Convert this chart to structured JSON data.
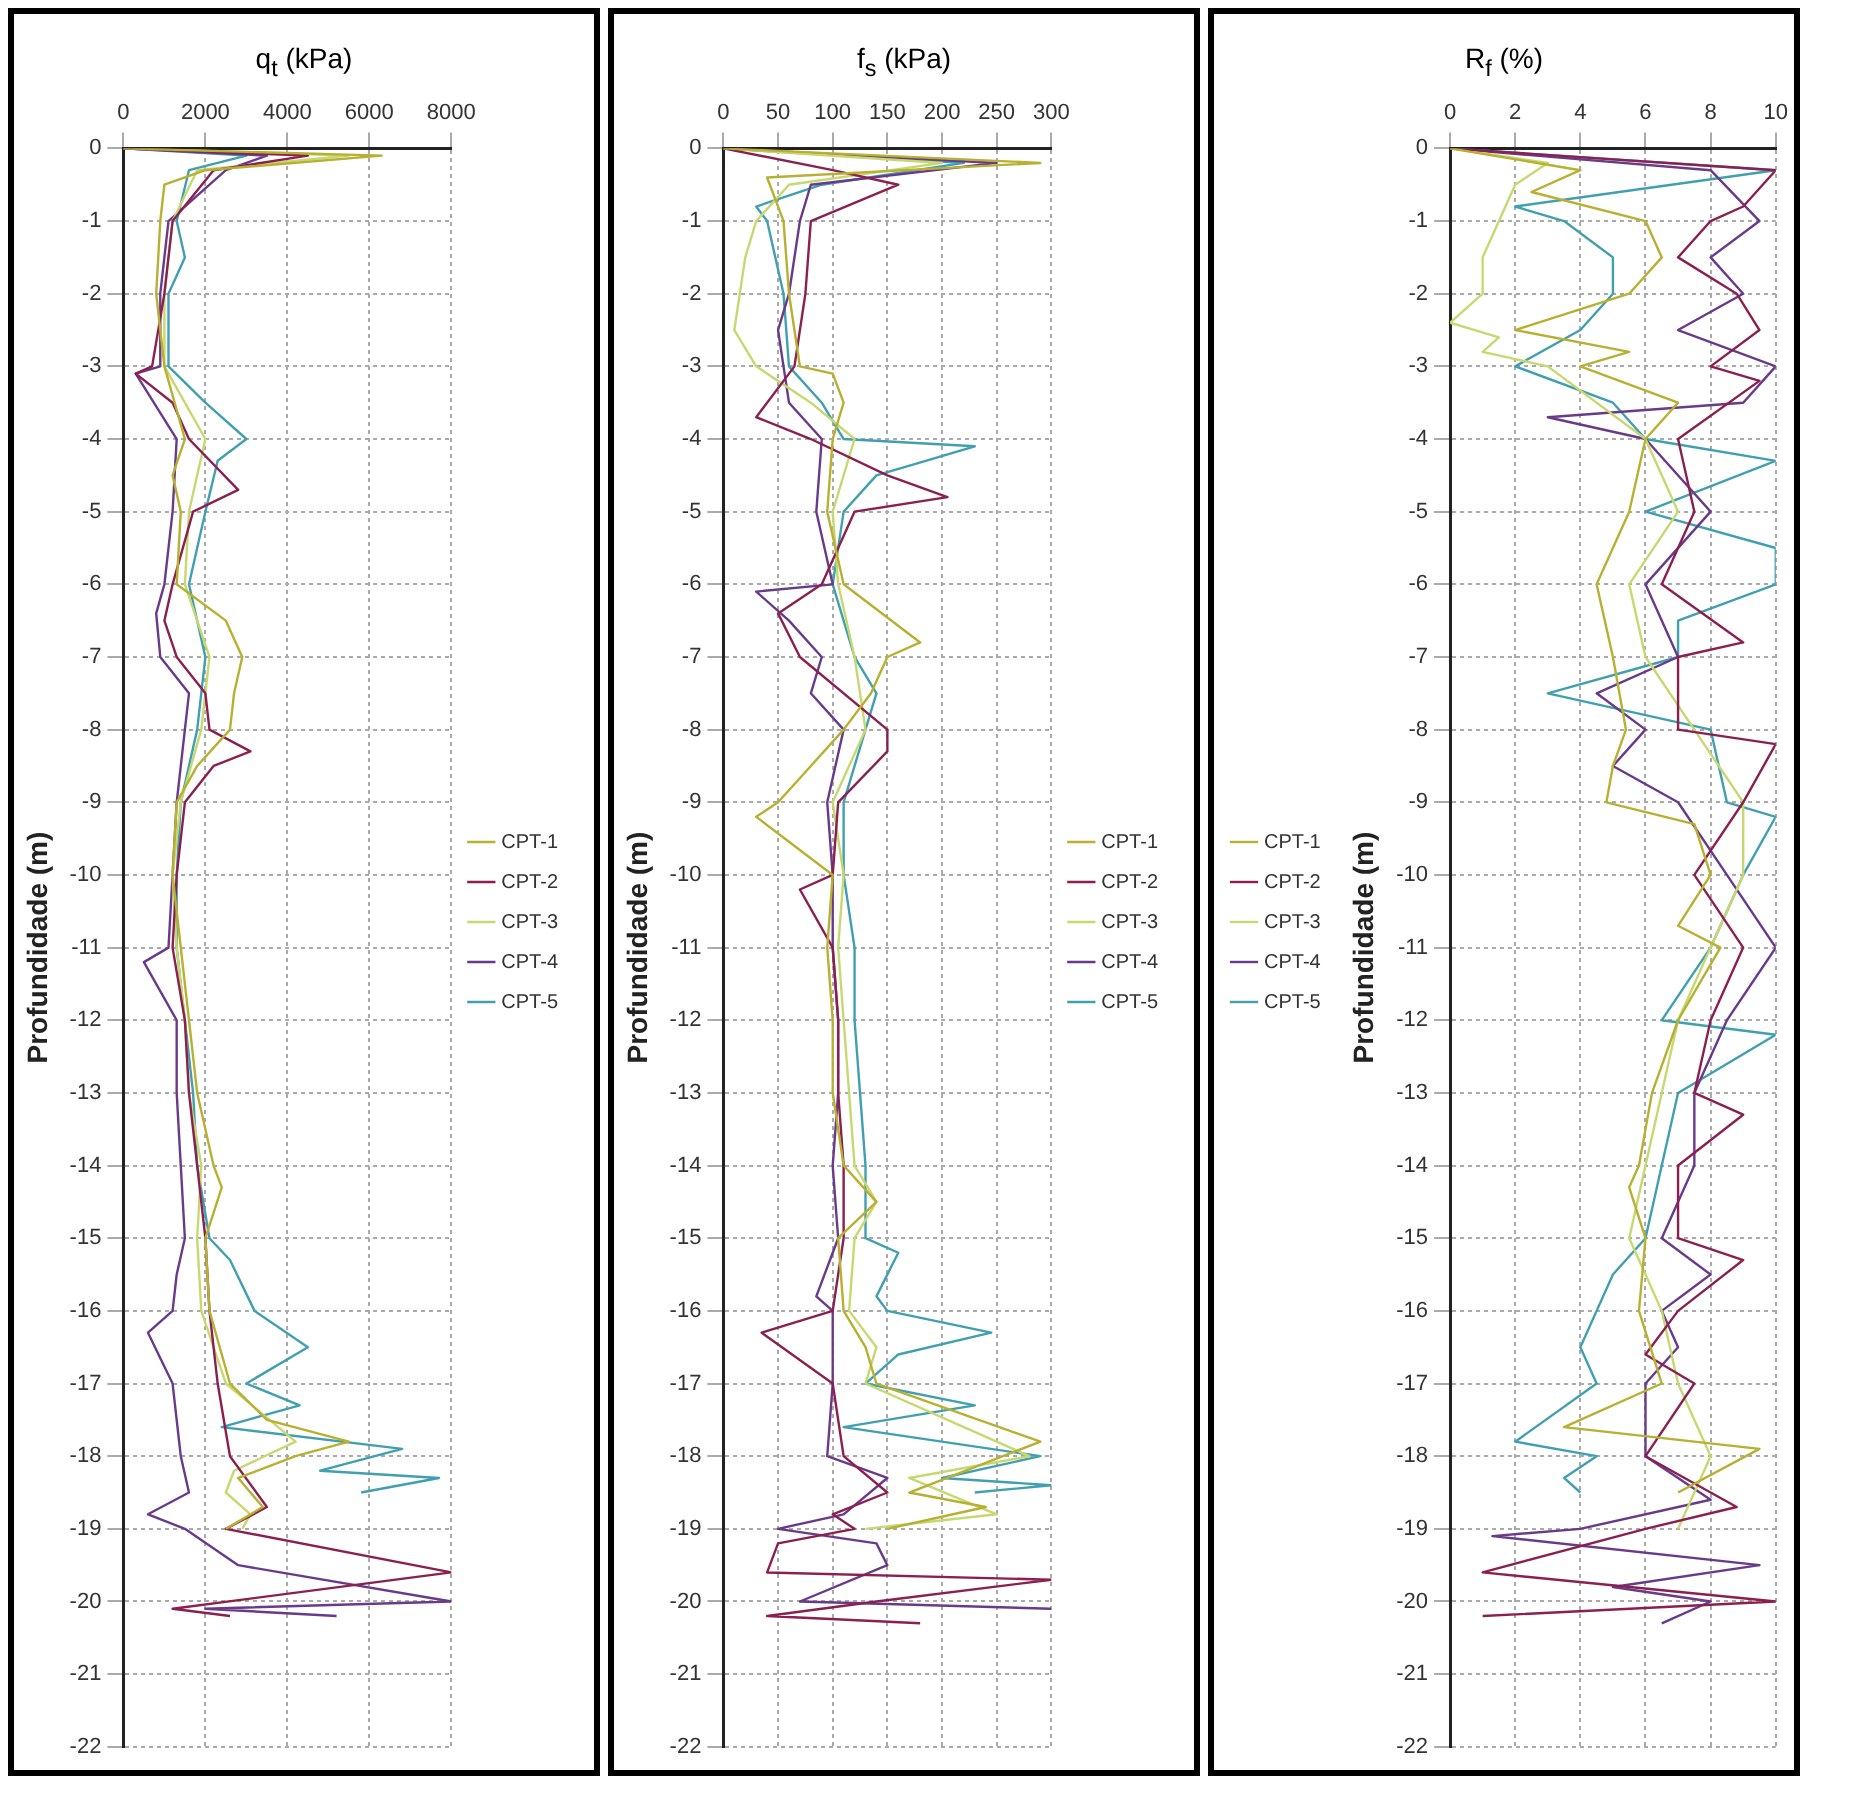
{
  "chart_data": [
    {
      "type": "line",
      "title": "q$_{t}$ (kPa)",
      "ylabel": "Profundidade (m)",
      "xlim": [
        0,
        8000
      ],
      "xticks": [
        0,
        2000,
        4000,
        6000,
        8000
      ],
      "ylim": [
        -22,
        0
      ],
      "yticks": [
        -22,
        -21,
        -20,
        -19,
        -18,
        -17,
        -16,
        -15,
        -14,
        -13,
        -12,
        -11,
        -10,
        -9,
        -8,
        -7,
        -6,
        -5,
        -4,
        -3,
        -2,
        -1,
        0
      ],
      "grid": true,
      "legend": "right",
      "series": [
        {
          "name": "CPT-1",
          "color": "#b8b030",
          "x": [
            0,
            6300,
            2000,
            1000,
            900,
            800,
            1000,
            1500,
            1200,
            1400,
            1300,
            2500,
            2900,
            2700,
            2600,
            1800,
            1300,
            1200,
            1400,
            1600,
            1800,
            2200,
            2400,
            2000,
            2100,
            2600,
            3500,
            5500,
            4200,
            2800,
            3400,
            2500
          ],
          "values": [
            0,
            -0.1,
            -0.3,
            -0.5,
            -1,
            -2,
            -3,
            -4,
            -4.5,
            -5,
            -6,
            -6.5,
            -7,
            -7.5,
            -8,
            -8.5,
            -9,
            -10,
            -11,
            -12,
            -13,
            -14,
            -14.3,
            -15,
            -16,
            -17,
            -17.5,
            -17.8,
            -18,
            -18.3,
            -18.7,
            -19
          ]
        },
        {
          "name": "CPT-2",
          "color": "#8b2050",
          "x": [
            0,
            4500,
            2200,
            1200,
            1000,
            700,
            300,
            1200,
            1600,
            2800,
            1700,
            1200,
            1000,
            1300,
            2000,
            2100,
            3100,
            2200,
            1500,
            1300,
            1200,
            1500,
            1600,
            1800,
            2000,
            2100,
            2300,
            2600,
            3500,
            2500,
            8000,
            1200,
            2600
          ],
          "values": [
            0,
            -0.1,
            -0.3,
            -1,
            -2,
            -3,
            -3.1,
            -3.5,
            -4,
            -4.7,
            -5,
            -6,
            -6.5,
            -7,
            -7.5,
            -8,
            -8.3,
            -8.5,
            -9,
            -10,
            -11,
            -12,
            -13,
            -14,
            -15,
            -16,
            -17,
            -18,
            -18.7,
            -19,
            -19.6,
            -20.1,
            -20.2
          ]
        },
        {
          "name": "CPT-3",
          "color": "#c8d870",
          "x": [
            0,
            5500,
            1800,
            1200,
            1000,
            1000,
            1500,
            2000,
            1600,
            1500,
            2100,
            1900,
            1400,
            1200,
            1300,
            1500,
            1600,
            1900,
            1800,
            1900,
            2200,
            2500,
            4200,
            2700,
            2500,
            3100,
            2900
          ],
          "values": [
            0,
            -0.1,
            -0.3,
            -1,
            -2,
            -3,
            -3.5,
            -4,
            -5,
            -6,
            -7,
            -8,
            -9,
            -10,
            -11,
            -12,
            -13,
            -14,
            -15,
            -16,
            -16.5,
            -17,
            -17.8,
            -18.2,
            -18.5,
            -18.8,
            -19
          ]
        },
        {
          "name": "CPT-4",
          "color": "#6a3a8a",
          "x": [
            0,
            3500,
            2500,
            1100,
            900,
            900,
            300,
            1300,
            1200,
            1000,
            800,
            900,
            1600,
            1500,
            1300,
            1200,
            1100,
            500,
            1300,
            1300,
            1400,
            1500,
            1300,
            1200,
            600,
            1200,
            1400,
            1600,
            600,
            1500,
            2800,
            8000,
            2000,
            5200
          ],
          "values": [
            0,
            -0.1,
            -0.3,
            -1,
            -2,
            -3,
            -3.1,
            -4,
            -5,
            -6,
            -6.4,
            -7,
            -7.5,
            -8,
            -9,
            -10,
            -11,
            -11.2,
            -12,
            -13,
            -14,
            -15,
            -15.5,
            -16,
            -16.3,
            -17,
            -18,
            -18.5,
            -18.8,
            -19,
            -19.5,
            -20,
            -20.1,
            -20.2
          ]
        },
        {
          "name": "CPT-5",
          "color": "#40a0b0",
          "x": [
            0,
            3000,
            1600,
            1300,
            1500,
            1100,
            1100,
            2000,
            3000,
            2300,
            2000,
            1600,
            1800,
            2000,
            1800,
            1400,
            1300,
            1300,
            1500,
            1700,
            1800,
            2100,
            2600,
            3200,
            4500,
            3000,
            4300,
            2400,
            6800,
            4800,
            7700,
            5800
          ],
          "values": [
            0,
            -0.1,
            -0.3,
            -1,
            -1.5,
            -2,
            -3,
            -3.5,
            -4,
            -4.3,
            -5,
            -6,
            -6.5,
            -7,
            -8,
            -9,
            -10,
            -11,
            -12,
            -13,
            -14,
            -15,
            -15.3,
            -16,
            -16.5,
            -17,
            -17.3,
            -17.6,
            -17.9,
            -18.2,
            -18.3,
            -18.5
          ]
        }
      ]
    },
    {
      "type": "line",
      "title": "f$_{s}$ (kPa)",
      "ylabel": "Profundidade (m)",
      "xlim": [
        0,
        300
      ],
      "xticks": [
        0,
        50,
        100,
        150,
        200,
        250,
        300
      ],
      "ylim": [
        -22,
        0
      ],
      "yticks": [
        -22,
        -21,
        -20,
        -19,
        -18,
        -17,
        -16,
        -15,
        -14,
        -13,
        -12,
        -11,
        -10,
        -9,
        -8,
        -7,
        -6,
        -5,
        -4,
        -3,
        -2,
        -1,
        0
      ],
      "grid": true,
      "legend": "right",
      "series": [
        {
          "name": "CPT-1",
          "color": "#b8b030",
          "x": [
            0,
            290,
            40,
            55,
            60,
            70,
            100,
            110,
            100,
            95,
            110,
            180,
            150,
            135,
            110,
            80,
            50,
            30,
            100,
            95,
            100,
            100,
            110,
            140,
            105,
            110,
            130,
            140,
            290,
            170,
            240,
            150
          ],
          "values": [
            0,
            -0.2,
            -0.4,
            -1,
            -2,
            -3,
            -3.1,
            -3.5,
            -4,
            -5,
            -6,
            -6.8,
            -7,
            -7.5,
            -8,
            -8.5,
            -9,
            -9.2,
            -10,
            -11,
            -12,
            -13,
            -14,
            -14.5,
            -15,
            -16,
            -16.5,
            -17,
            -17.8,
            -18.5,
            -18.7,
            -19
          ]
        },
        {
          "name": "CPT-2",
          "color": "#8b2050",
          "x": [
            0,
            100,
            160,
            80,
            75,
            65,
            30,
            80,
            150,
            205,
            120,
            90,
            50,
            70,
            150,
            150,
            105,
            100,
            70,
            100,
            105,
            105,
            110,
            110,
            100,
            35,
            100,
            110,
            150,
            100,
            120,
            50,
            40,
            300,
            140,
            40,
            180
          ],
          "values": [
            0,
            -0.3,
            -0.5,
            -1,
            -2,
            -3,
            -3.7,
            -4,
            -4.5,
            -4.8,
            -5,
            -6,
            -6.4,
            -7,
            -8,
            -8.3,
            -9,
            -10,
            -10.2,
            -11,
            -12,
            -13,
            -14,
            -15,
            -16,
            -16.3,
            -17,
            -18,
            -18.5,
            -18.8,
            -19,
            -19.2,
            -19.6,
            -19.7,
            -20,
            -20.2,
            -20.3
          ]
        },
        {
          "name": "CPT-3",
          "color": "#c8d870",
          "x": [
            0,
            200,
            60,
            30,
            20,
            15,
            10,
            30,
            80,
            120,
            100,
            105,
            120,
            130,
            100,
            110,
            105,
            110,
            115,
            120,
            140,
            120,
            115,
            140,
            130,
            280,
            170,
            250,
            130
          ],
          "values": [
            0,
            -0.2,
            -0.5,
            -1,
            -1.5,
            -2,
            -2.5,
            -3,
            -3.5,
            -4,
            -5,
            -6,
            -7,
            -8,
            -9,
            -10,
            -11,
            -12,
            -13,
            -14,
            -14.5,
            -15,
            -16,
            -16.5,
            -17,
            -18,
            -18.3,
            -18.8,
            -19
          ]
        },
        {
          "name": "CPT-4",
          "color": "#6a3a8a",
          "x": [
            0,
            250,
            80,
            70,
            60,
            50,
            55,
            60,
            90,
            85,
            100,
            30,
            60,
            90,
            80,
            110,
            95,
            100,
            100,
            105,
            105,
            100,
            105,
            85,
            100,
            100,
            95,
            150,
            110,
            50,
            140,
            150,
            70,
            300
          ],
          "values": [
            0,
            -0.2,
            -0.5,
            -1,
            -2,
            -2.5,
            -3,
            -3.5,
            -4,
            -5,
            -6,
            -6.1,
            -6.5,
            -7,
            -7.5,
            -8,
            -9,
            -10,
            -11,
            -12,
            -13,
            -14,
            -15,
            -15.8,
            -16,
            -17,
            -18,
            -18.3,
            -18.8,
            -19,
            -19.2,
            -19.5,
            -20,
            -20.1
          ]
        },
        {
          "name": "CPT-5",
          "color": "#40a0b0",
          "x": [
            0,
            220,
            90,
            30,
            40,
            55,
            60,
            90,
            110,
            230,
            140,
            110,
            100,
            120,
            140,
            130,
            110,
            110,
            120,
            120,
            125,
            130,
            130,
            160,
            140,
            150,
            245,
            160,
            130,
            230,
            110,
            290,
            200,
            300,
            230
          ],
          "values": [
            0,
            -0.2,
            -0.5,
            -0.8,
            -1,
            -2,
            -3,
            -3.5,
            -4,
            -4.1,
            -4.5,
            -5,
            -6,
            -7,
            -7.5,
            -8,
            -9,
            -10,
            -11,
            -12,
            -13,
            -14,
            -15,
            -15.2,
            -15.8,
            -16,
            -16.3,
            -16.6,
            -17,
            -17.3,
            -17.6,
            -18,
            -18.3,
            -18.4,
            -18.5
          ]
        }
      ]
    },
    {
      "type": "line",
      "title": "R$_{f}$ (%)",
      "ylabel": "Profundidade (m)",
      "xlim": [
        0,
        10
      ],
      "xticks": [
        0,
        2,
        4,
        6,
        8,
        10
      ],
      "ylim": [
        -22,
        0
      ],
      "yticks": [
        -22,
        -21,
        -20,
        -19,
        -18,
        -17,
        -16,
        -15,
        -14,
        -13,
        -12,
        -11,
        -10,
        -9,
        -8,
        -7,
        -6,
        -5,
        -4,
        -3,
        -2,
        -1,
        0
      ],
      "grid": true,
      "legend": "left",
      "series": [
        {
          "name": "CPT-1",
          "color": "#b8b030",
          "x": [
            0,
            4,
            2.5,
            6,
            6.5,
            5.5,
            2,
            5.5,
            4,
            7,
            6,
            5.5,
            4.5,
            5,
            5.4,
            5,
            4.8,
            7.5,
            8,
            7,
            8.3,
            7,
            6.2,
            5.8,
            5.5,
            6,
            5.8,
            6.5,
            3.5,
            9.5,
            7
          ],
          "values": [
            0,
            -0.3,
            -0.6,
            -1,
            -1.5,
            -2,
            -2.5,
            -2.8,
            -3,
            -3.5,
            -4,
            -5,
            -6,
            -7,
            -8,
            -8.5,
            -9,
            -9.3,
            -10,
            -10.7,
            -11,
            -12,
            -13,
            -14,
            -14.3,
            -15,
            -16,
            -17,
            -17.6,
            -17.9,
            -18.5
          ]
        },
        {
          "name": "CPT-2",
          "color": "#8b2050",
          "x": [
            0,
            10,
            9,
            8,
            7,
            8.8,
            9.5,
            8,
            9.5,
            7,
            7.5,
            6.5,
            9,
            7,
            7,
            10,
            9,
            7.5,
            9,
            8,
            7.5,
            9,
            7,
            7,
            9,
            7,
            6,
            7.5,
            6,
            8.8,
            6,
            1,
            10,
            1
          ],
          "values": [
            0,
            -0.3,
            -0.8,
            -1,
            -1.5,
            -2,
            -2.5,
            -3,
            -3.2,
            -4,
            -5,
            -6,
            -6.8,
            -7,
            -8,
            -8.2,
            -9,
            -10,
            -11,
            -12,
            -13,
            -13.3,
            -14,
            -15,
            -15.3,
            -16,
            -16.6,
            -17,
            -18,
            -18.7,
            -19,
            -19.6,
            -20,
            -20.2
          ]
        },
        {
          "name": "CPT-3",
          "color": "#c8d870",
          "x": [
            0,
            3,
            2,
            1.5,
            1,
            1,
            0,
            1.5,
            1,
            3,
            6,
            7,
            5.5,
            6,
            7.5,
            9,
            9,
            8,
            7,
            6.5,
            6,
            5.5,
            6.5,
            7,
            8,
            7
          ],
          "values": [
            0,
            -0.2,
            -0.5,
            -1,
            -1.5,
            -2,
            -2.4,
            -2.6,
            -2.8,
            -3,
            -4,
            -5,
            -6,
            -7,
            -8,
            -9,
            -10,
            -11,
            -12,
            -13,
            -14,
            -15,
            -16,
            -17,
            -18,
            -19
          ]
        },
        {
          "name": "CPT-4",
          "color": "#6a3a8a",
          "x": [
            0,
            8,
            9.5,
            8,
            9,
            7,
            10,
            9,
            3,
            6,
            8,
            6,
            7,
            4.5,
            6,
            5,
            7,
            8.5,
            10,
            8.5,
            7.5,
            7.5,
            6.5,
            8,
            6.5,
            7,
            6,
            6,
            8,
            4,
            1.3,
            9.5,
            5,
            8,
            6.5
          ],
          "values": [
            0,
            -0.3,
            -1,
            -1.5,
            -2,
            -2.5,
            -3,
            -3.5,
            -3.7,
            -4,
            -5,
            -6,
            -7,
            -7.5,
            -8,
            -8.5,
            -9,
            -10,
            -11,
            -12,
            -13,
            -14,
            -15,
            -15.5,
            -16,
            -16.5,
            -17,
            -18,
            -18.6,
            -19,
            -19.1,
            -19.5,
            -19.8,
            -20,
            -20.3
          ]
        },
        {
          "name": "CPT-5",
          "color": "#40a0b0",
          "x": [
            0,
            10,
            2,
            3.5,
            5,
            5,
            4,
            2,
            5,
            6,
            10,
            6,
            10,
            10,
            7,
            7,
            3,
            8,
            8.5,
            10,
            9,
            8,
            6.5,
            10,
            7,
            6.5,
            6,
            5,
            4.5,
            4,
            4.5,
            2,
            4.5,
            3.5,
            4
          ],
          "values": [
            0,
            -0.3,
            -0.8,
            -1,
            -1.5,
            -2,
            -2.5,
            -3,
            -3.5,
            -4,
            -4.3,
            -5,
            -5.5,
            -6,
            -6.5,
            -7,
            -7.5,
            -8,
            -9,
            -9.2,
            -10,
            -11,
            -12,
            -12.2,
            -13,
            -14,
            -15,
            -15.5,
            -16,
            -16.5,
            -17,
            -17.8,
            -18,
            -18.3,
            -18.5
          ]
        }
      ]
    }
  ]
}
